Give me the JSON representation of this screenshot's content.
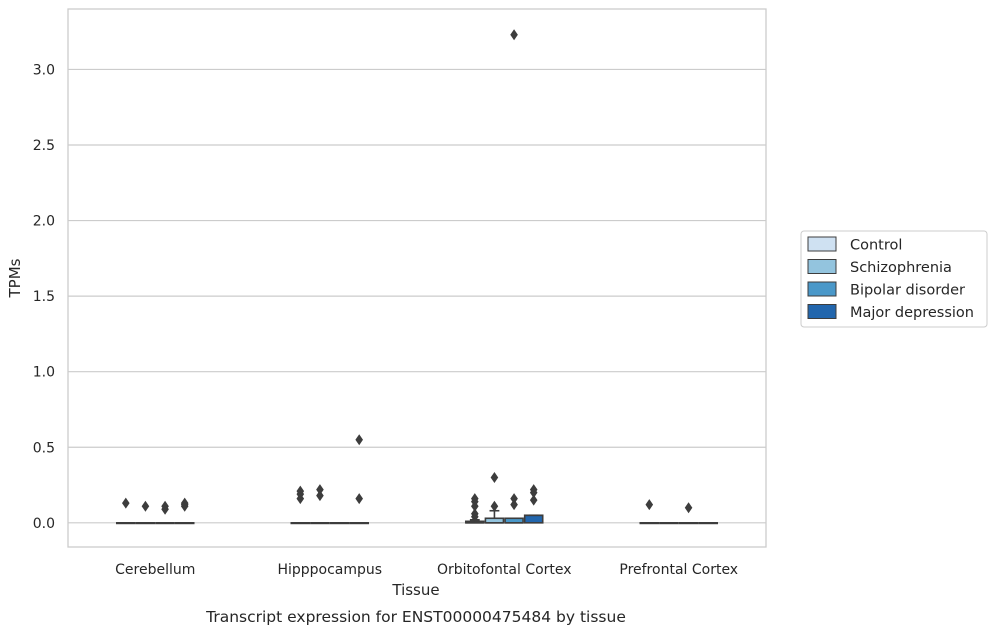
{
  "chart_data": {
    "type": "box",
    "title": "",
    "caption": "Transcript expression for ENST00000475484 by tissue",
    "xlabel": "Tissue",
    "ylabel": "TPMs",
    "ylim": [
      -0.16,
      3.4
    ],
    "yticks": [
      0.0,
      0.5,
      1.0,
      1.5,
      2.0,
      2.5,
      3.0
    ],
    "ytick_labels": [
      "0.0",
      "0.5",
      "1.0",
      "1.5",
      "2.0",
      "2.5",
      "3.0"
    ],
    "grid": "horizontal",
    "legend_position": "right",
    "categories": [
      "Cerebellum",
      "Hipppocampus",
      "Orbitofontal Cortex",
      "Prefrontal Cortex"
    ],
    "series": [
      {
        "name": "Control",
        "color": "#cfe1f2",
        "boxes": [
          {
            "q1": 0,
            "median": 0,
            "q3": 0,
            "whisker_low": 0,
            "whisker_high": 0,
            "outliers": [
              0.13
            ]
          },
          {
            "q1": 0,
            "median": 0,
            "q3": 0,
            "whisker_low": 0,
            "whisker_high": 0,
            "outliers": [
              0.16,
              0.19,
              0.21
            ]
          },
          {
            "q1": 0,
            "median": 0,
            "q3": 0.01,
            "whisker_low": 0,
            "whisker_high": 0.02,
            "outliers": [
              0.04,
              0.06,
              0.11,
              0.14,
              0.16
            ]
          },
          {
            "q1": 0,
            "median": 0,
            "q3": 0,
            "whisker_low": 0,
            "whisker_high": 0,
            "outliers": [
              0.12
            ]
          }
        ]
      },
      {
        "name": "Schizophrenia",
        "color": "#93c4de",
        "boxes": [
          {
            "q1": 0,
            "median": 0,
            "q3": 0,
            "whisker_low": 0,
            "whisker_high": 0,
            "outliers": [
              0.11
            ]
          },
          {
            "q1": 0,
            "median": 0,
            "q3": 0,
            "whisker_low": 0,
            "whisker_high": 0,
            "outliers": [
              0.18,
              0.22
            ]
          },
          {
            "q1": 0,
            "median": 0,
            "q3": 0.03,
            "whisker_low": 0,
            "whisker_high": 0.08,
            "outliers": [
              0.11,
              0.3
            ]
          },
          {
            "q1": 0,
            "median": 0,
            "q3": 0,
            "whisker_low": 0,
            "whisker_high": 0,
            "outliers": []
          }
        ]
      },
      {
        "name": "Bipolar disorder",
        "color": "#4a98c9",
        "boxes": [
          {
            "q1": 0,
            "median": 0,
            "q3": 0,
            "whisker_low": 0,
            "whisker_high": 0,
            "outliers": [
              0.09,
              0.11
            ]
          },
          {
            "q1": 0,
            "median": 0,
            "q3": 0,
            "whisker_low": 0,
            "whisker_high": 0,
            "outliers": []
          },
          {
            "q1": 0,
            "median": 0,
            "q3": 0.03,
            "whisker_low": 0,
            "whisker_high": 0.03,
            "outliers": [
              0.12,
              0.16,
              3.23
            ]
          },
          {
            "q1": 0,
            "median": 0,
            "q3": 0,
            "whisker_low": 0,
            "whisker_high": 0,
            "outliers": [
              0.1
            ]
          }
        ]
      },
      {
        "name": "Major depression",
        "color": "#2266ad",
        "boxes": [
          {
            "q1": 0,
            "median": 0,
            "q3": 0,
            "whisker_low": 0,
            "whisker_high": 0,
            "outliers": [
              0.11,
              0.12,
              0.13
            ]
          },
          {
            "q1": 0,
            "median": 0,
            "q3": 0,
            "whisker_low": 0,
            "whisker_high": 0,
            "outliers": [
              0.16,
              0.55
            ]
          },
          {
            "q1": 0,
            "median": 0.05,
            "q3": 0.05,
            "whisker_low": 0,
            "whisker_high": 0.05,
            "outliers": [
              0.15,
              0.2,
              0.22
            ]
          },
          {
            "q1": 0,
            "median": 0,
            "q3": 0,
            "whisker_low": 0,
            "whisker_high": 0,
            "outliers": []
          }
        ]
      }
    ]
  }
}
